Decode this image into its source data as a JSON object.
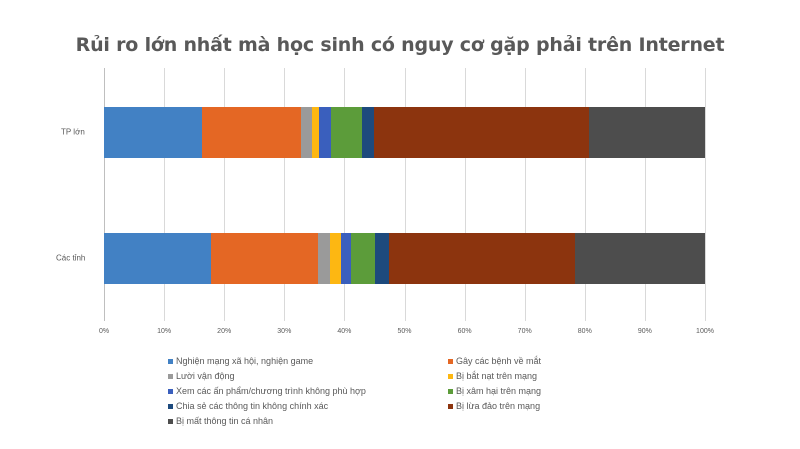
{
  "chart_data": {
    "type": "bar",
    "orientation": "horizontal",
    "stacked": "percent",
    "title": "Rủi ro lớn nhất mà học sinh có nguy cơ gặp phải trên Internet",
    "xlabel": "",
    "ylabel": "",
    "xlim": [
      0,
      100
    ],
    "x_ticks": [
      "0%",
      "10%",
      "20%",
      "30%",
      "40%",
      "50%",
      "60%",
      "70%",
      "80%",
      "90%",
      "100%"
    ],
    "categories": [
      "TP lớn",
      "Các tỉnh"
    ],
    "grid": true,
    "legend_position": "bottom",
    "series": [
      {
        "name": "Nghiện mạng xã hội, nghiện game",
        "color": "#4281c4",
        "values": [
          16.3,
          17.8
        ]
      },
      {
        "name": "Gây các bệnh về mắt",
        "color": "#e46724",
        "values": [
          16.4,
          17.8
        ]
      },
      {
        "name": "Lười vận động",
        "color": "#9a9a9a",
        "values": [
          1.9,
          2.0
        ]
      },
      {
        "name": "Bị bắt nạt trên mạng",
        "color": "#fdb712",
        "values": [
          1.1,
          1.9
        ]
      },
      {
        "name": "Xem các ấn phẩm/chương trình không phù hợp",
        "color": "#3a5fbd",
        "values": [
          2.0,
          1.6
        ]
      },
      {
        "name": "Bị xâm hại trên mạng",
        "color": "#5c9c3a",
        "values": [
          5.2,
          4.0
        ]
      },
      {
        "name": "Chia sẻ các thông tin không chính xác",
        "color": "#1d4a7d",
        "values": [
          2.1,
          2.4
        ]
      },
      {
        "name": "Bị lừa đảo trên mạng",
        "color": "#8c340e",
        "values": [
          35.7,
          30.8
        ]
      },
      {
        "name": "Bị mất thông tin cá nhân",
        "color": "#4d4d4d",
        "values": [
          19.3,
          21.7
        ]
      }
    ]
  },
  "legend": [
    {
      "label": "Nghiện mạng xã hội, nghiện game",
      "color": "#4281c4"
    },
    {
      "label": "Gây các bệnh về mắt",
      "color": "#e46724"
    },
    {
      "label": "Lười vận động",
      "color": "#9a9a9a"
    },
    {
      "label": "Bị bắt nạt trên mạng",
      "color": "#fdb712"
    },
    {
      "label": "Xem các ấn phẩm/chương trình không phù hợp",
      "color": "#3a5fbd"
    },
    {
      "label": "Bị xâm hại trên mạng",
      "color": "#5c9c3a"
    },
    {
      "label": "Chia sẻ các thông tin không chính xác",
      "color": "#1d4a7d"
    },
    {
      "label": "Bị lừa đảo trên mạng",
      "color": "#8c340e"
    },
    {
      "label": "Bị mất thông tin cá nhân",
      "color": "#4d4d4d"
    }
  ]
}
